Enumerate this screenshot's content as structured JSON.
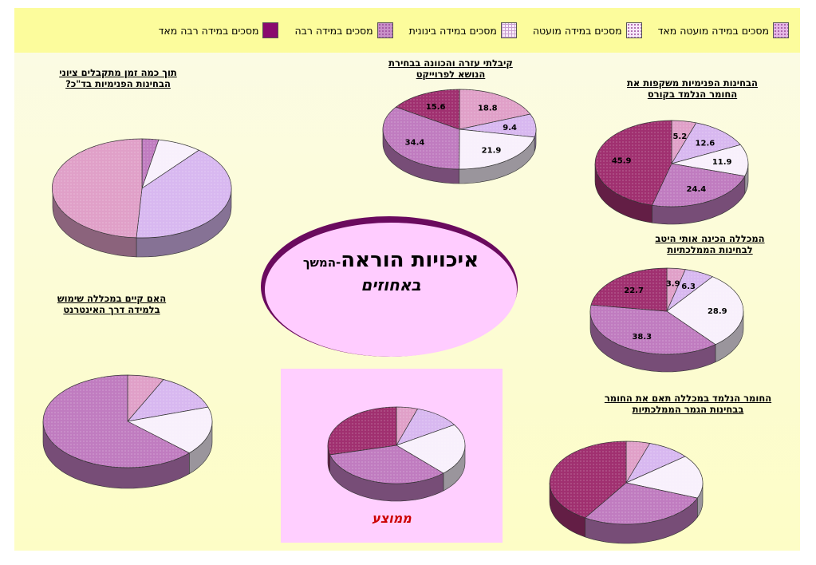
{
  "legend": [
    {
      "label": "מסכים במידה מועטה מאד",
      "color": "#e6b8e6",
      "pattern": "dots"
    },
    {
      "label": "מסכים במידה מועטה",
      "color": "#f6e8f8",
      "pattern": "dots"
    },
    {
      "label": "מסכים במידה בינונית",
      "color": "#f8eaf8",
      "pattern": "grid"
    },
    {
      "label": "מסכים במידה רבה",
      "color": "#c890c8",
      "pattern": "dots"
    },
    {
      "label": "מסכים במידה רבה מאד",
      "color": "#8a0a6e",
      "pattern": "solid"
    }
  ],
  "slide_colors": {
    "legend_bg": "#fcfc9c",
    "ellipse_fill": "#ffccff",
    "ellipse_stroke": "#6a0a5e",
    "avg_bg": "#ffcfff",
    "avg_label": "#cc0000"
  },
  "center": {
    "title_main": "איכויות הוראה",
    "title_cont": "-המשך",
    "subtitle": "באחוזים"
  },
  "avg_label": "ממוצע",
  "chart_data": [
    {
      "type": "pie",
      "id": "project-help",
      "title_lines": [
        "קיבלתי עזרה והכוונה בבחירת",
        "הנושא לפרוייקט"
      ],
      "series": [
        {
          "values": [
            18.8,
            9.4,
            21.9,
            34.4,
            15.6
          ],
          "labels": [
            "18.8",
            "9.4",
            "21.9",
            "34.4",
            "15.6"
          ]
        }
      ],
      "colors": [
        "#e0a0c8",
        "#d8b8f0",
        "#f8f0fc",
        "#c07cc0",
        "#a03070"
      ],
      "start_angle": 0,
      "show_data_labels": true
    },
    {
      "type": "pie",
      "id": "internal-exams-transparency",
      "title_lines": [
        "הבחינות הפנימיות משקפות את",
        "החומר הנלמד בקורס"
      ],
      "series": [
        {
          "values": [
            5.2,
            12.6,
            11.9,
            24.4,
            45.9
          ],
          "labels": [
            "5.2",
            "12.6",
            "11.9",
            "24.4",
            "45.9"
          ]
        }
      ],
      "colors": [
        "#e0a0c8",
        "#d8b8f0",
        "#f8f0fc",
        "#c07cc0",
        "#a03070"
      ],
      "start_angle": 0,
      "show_data_labels": true
    },
    {
      "type": "pie",
      "id": "national-exams-prep",
      "title_lines": [
        "המכללה הכינה אותי היטב",
        "לבחינות הממלכתיות"
      ],
      "series": [
        {
          "values": [
            3.9,
            6.3,
            28.9,
            38.3,
            22.7
          ],
          "labels": [
            "3.9",
            "6.3",
            "28.9",
            "38.3",
            "22.7"
          ]
        }
      ],
      "colors": [
        "#e0a0c8",
        "#d8b8f0",
        "#f8f0fc",
        "#c07cc0",
        "#a03070"
      ],
      "start_angle": 0,
      "show_data_labels": true
    },
    {
      "type": "pie",
      "id": "exam-feedback-time",
      "title_lines": [
        "תוך כמה זמן מתקבלים ציוני",
        "הבחינות הפנימיות בד\"כ?"
      ],
      "series": [
        {
          "values": [
            3,
            8,
            40,
            49
          ],
          "labels": []
        }
      ],
      "colors": [
        "#c07cc0",
        "#f8f0fc",
        "#d8b8f0",
        "#e0a0c8"
      ],
      "start_angle": 0,
      "show_data_labels": false
    },
    {
      "type": "pie",
      "id": "internet-learning",
      "title_lines": [
        "האם קיים במכללה שימוש",
        "בלמידה דרך האינטרנט"
      ],
      "series": [
        {
          "values": [
            7,
            13,
            17,
            63
          ],
          "labels": []
        }
      ],
      "colors": [
        "#e0a0c8",
        "#d8b8f0",
        "#f8f0fc",
        "#c07cc0"
      ],
      "start_angle": 0,
      "show_data_labels": false
    },
    {
      "type": "pie",
      "id": "average",
      "title_lines": [],
      "series": [
        {
          "values": [
            5,
            11,
            22,
            33,
            29
          ],
          "labels": []
        }
      ],
      "colors": [
        "#e0a0c8",
        "#d8b8f0",
        "#f8f0fc",
        "#c07cc0",
        "#a03070"
      ],
      "start_angle": 0,
      "show_data_labels": false
    },
    {
      "type": "pie",
      "id": "material-alignment",
      "title_lines": [
        "החומר הנלמד במכללה תאם את החומר",
        "בבחינות הגמר הממלכתיות"
      ],
      "series": [
        {
          "values": [
            5,
            9,
            17,
            28,
            41
          ],
          "labels": []
        }
      ],
      "colors": [
        "#e0a0c8",
        "#d8b8f0",
        "#f8f0fc",
        "#c07cc0",
        "#a03070"
      ],
      "start_angle": 0,
      "show_data_labels": false
    }
  ]
}
